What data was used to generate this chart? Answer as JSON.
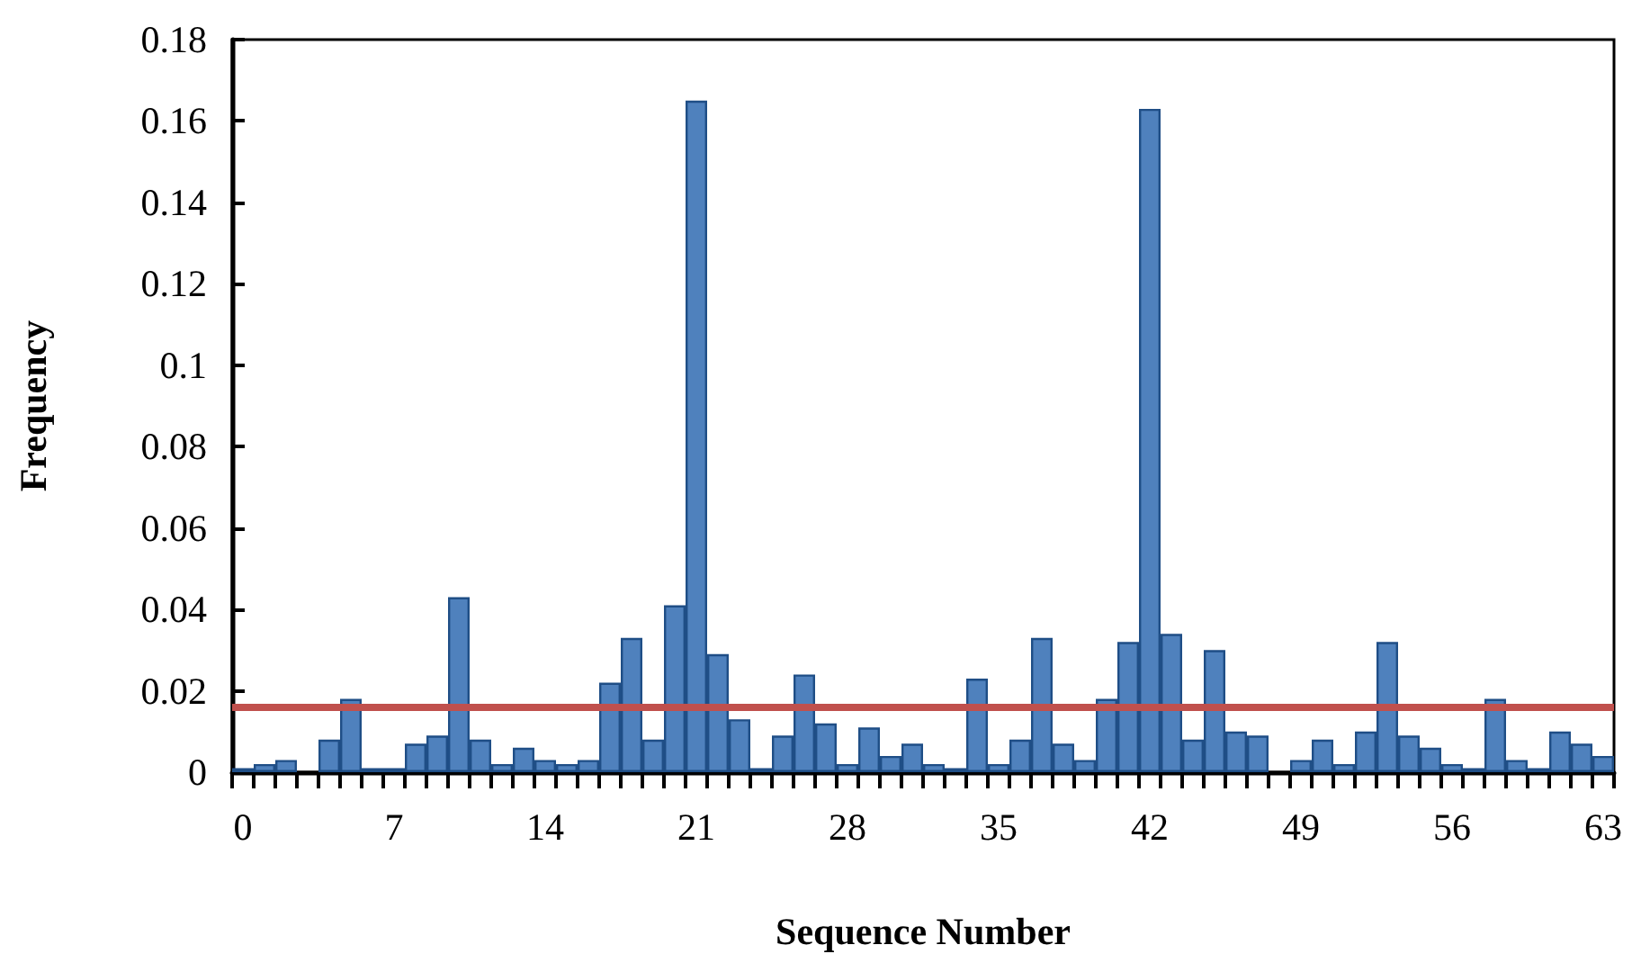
{
  "chart_data": {
    "type": "bar",
    "xlabel": "Sequence Number",
    "ylabel": "Frequency",
    "categories": [
      "0",
      null,
      null,
      null,
      null,
      null,
      null,
      "7",
      null,
      null,
      null,
      null,
      null,
      null,
      "14",
      null,
      null,
      null,
      null,
      null,
      null,
      "21",
      null,
      null,
      null,
      null,
      null,
      null,
      "28",
      null,
      null,
      null,
      null,
      null,
      null,
      "35",
      null,
      null,
      null,
      null,
      null,
      null,
      "42",
      null,
      null,
      null,
      null,
      null,
      null,
      "49",
      null,
      null,
      null,
      null,
      null,
      null,
      "56",
      null,
      null,
      null,
      null,
      null,
      null,
      "63"
    ],
    "values": [
      0.001,
      0.002,
      0.003,
      0,
      0.008,
      0.018,
      0.001,
      0.001,
      0.007,
      0.009,
      0.043,
      0.008,
      0.002,
      0.006,
      0.003,
      0.002,
      0.003,
      0.022,
      0.033,
      0.008,
      0.041,
      0.165,
      0.029,
      0.013,
      0.001,
      0.009,
      0.024,
      0.012,
      0.002,
      0.011,
      0.004,
      0.007,
      0.002,
      0.001,
      0.023,
      0.002,
      0.008,
      0.033,
      0.007,
      0.003,
      0.018,
      0.032,
      0.163,
      0.034,
      0.008,
      0.03,
      0.01,
      0.009,
      0,
      0.003,
      0.008,
      0.002,
      0.01,
      0.032,
      0.009,
      0.006,
      0.002,
      0.001,
      0.018,
      0.003,
      0.001,
      0.01,
      0.007,
      0.004
    ],
    "color": "#4f81bd",
    "ylim": [
      0,
      0.18
    ],
    "yticks": [
      0,
      0.02,
      0.04,
      0.06,
      0.08,
      0.1,
      0.12,
      0.14,
      0.16,
      0.18
    ],
    "ref_lines": [
      {
        "axis": "y",
        "value": 0.016,
        "color": "#c0504d"
      }
    ],
    "grid": false
  }
}
